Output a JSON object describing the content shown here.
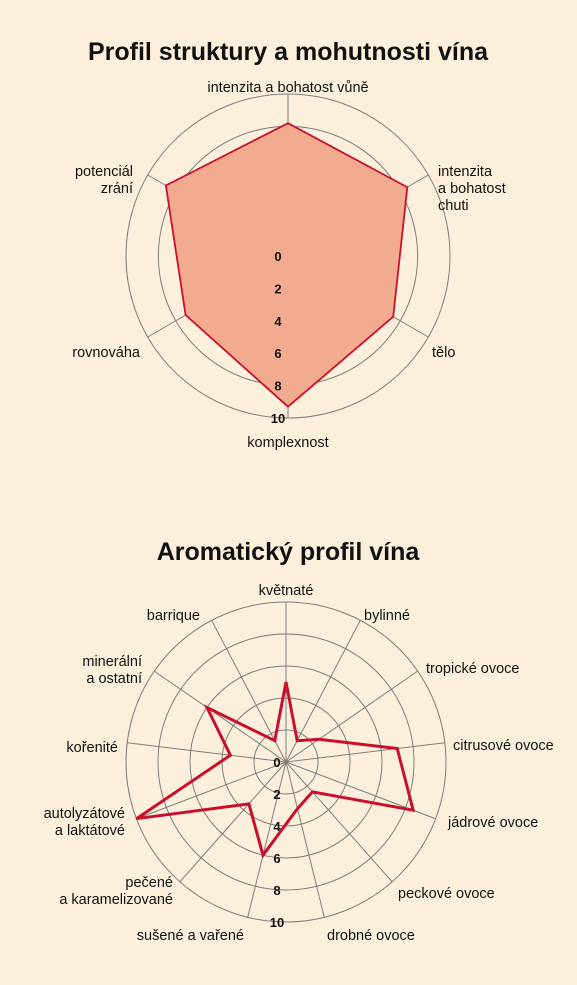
{
  "background_color": "#fcf0dc",
  "chart_data": [
    {
      "type": "radar",
      "title": "Profil struktury a mohutnosti vína",
      "axes": [
        "intenzita a bohatost vůně",
        "intenzita\na bohatost\nchuti",
        "tělo",
        "komplexnost",
        "rovnováha",
        "potenciál\nzrání"
      ],
      "values": [
        8.2,
        8.5,
        7.5,
        9.3,
        7.3,
        8.7
      ],
      "range": [
        0,
        10
      ],
      "ticks": [
        "0",
        "2",
        "4",
        "6",
        "8",
        "10"
      ],
      "grid_rings": [
        2,
        4,
        6,
        8,
        10
      ],
      "fill_color": "#f2ab8f",
      "line_color": "#c8102e"
    },
    {
      "type": "radar",
      "title": "Aromatický profil vína",
      "axes": [
        "květnaté",
        "bylinné",
        "tropické ovoce",
        "citrusové ovoce",
        "jádrové ovoce",
        "peckové ovoce",
        "drobné ovoce",
        "sušené a vařené",
        "pečené\na karamelizované",
        "autolyzátové\na laktátové",
        "kořenité",
        "minerální\na ostatní",
        "barrique"
      ],
      "values": [
        5.0,
        1.5,
        2.5,
        7.0,
        8.5,
        2.5,
        3.0,
        6.0,
        3.5,
        10.0,
        3.5,
        6.0,
        1.5
      ],
      "range": [
        0,
        10
      ],
      "ticks": [
        "0",
        "2",
        "4",
        "6",
        "8",
        "10"
      ],
      "grid_rings": [
        2,
        4,
        6,
        8,
        10
      ],
      "fill_color": "none",
      "line_color": "#c8102e"
    }
  ]
}
